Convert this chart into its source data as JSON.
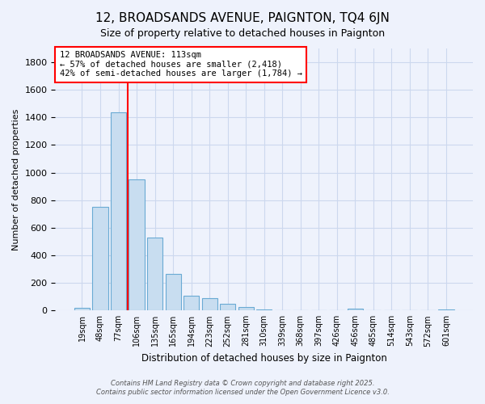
{
  "title": "12, BROADSANDS AVENUE, PAIGNTON, TQ4 6JN",
  "subtitle": "Size of property relative to detached houses in Paignton",
  "xlabel": "Distribution of detached houses by size in Paignton",
  "ylabel": "Number of detached properties",
  "bar_labels": [
    "19sqm",
    "48sqm",
    "77sqm",
    "106sqm",
    "135sqm",
    "165sqm",
    "194sqm",
    "223sqm",
    "252sqm",
    "281sqm",
    "310sqm",
    "339sqm",
    "368sqm",
    "397sqm",
    "426sqm",
    "456sqm",
    "485sqm",
    "514sqm",
    "543sqm",
    "572sqm",
    "601sqm"
  ],
  "bar_values": [
    20,
    750,
    1435,
    950,
    530,
    265,
    105,
    90,
    50,
    25,
    5,
    0,
    0,
    0,
    0,
    15,
    0,
    0,
    0,
    0,
    5
  ],
  "bar_color": "#c8ddf0",
  "bar_edge_color": "#6aaad4",
  "vline_color": "red",
  "annotation_title": "12 BROADSANDS AVENUE: 113sqm",
  "annotation_line1": "← 57% of detached houses are smaller (2,418)",
  "annotation_line2": "42% of semi-detached houses are larger (1,784) →",
  "annotation_box_color": "white",
  "annotation_box_edge_color": "red",
  "ylim": [
    0,
    1900
  ],
  "yticks": [
    0,
    200,
    400,
    600,
    800,
    1000,
    1200,
    1400,
    1600,
    1800
  ],
  "footer1": "Contains HM Land Registry data © Crown copyright and database right 2025.",
  "footer2": "Contains public sector information licensed under the Open Government Licence v3.0.",
  "background_color": "#eef2fc",
  "grid_color": "#ccd8ee"
}
